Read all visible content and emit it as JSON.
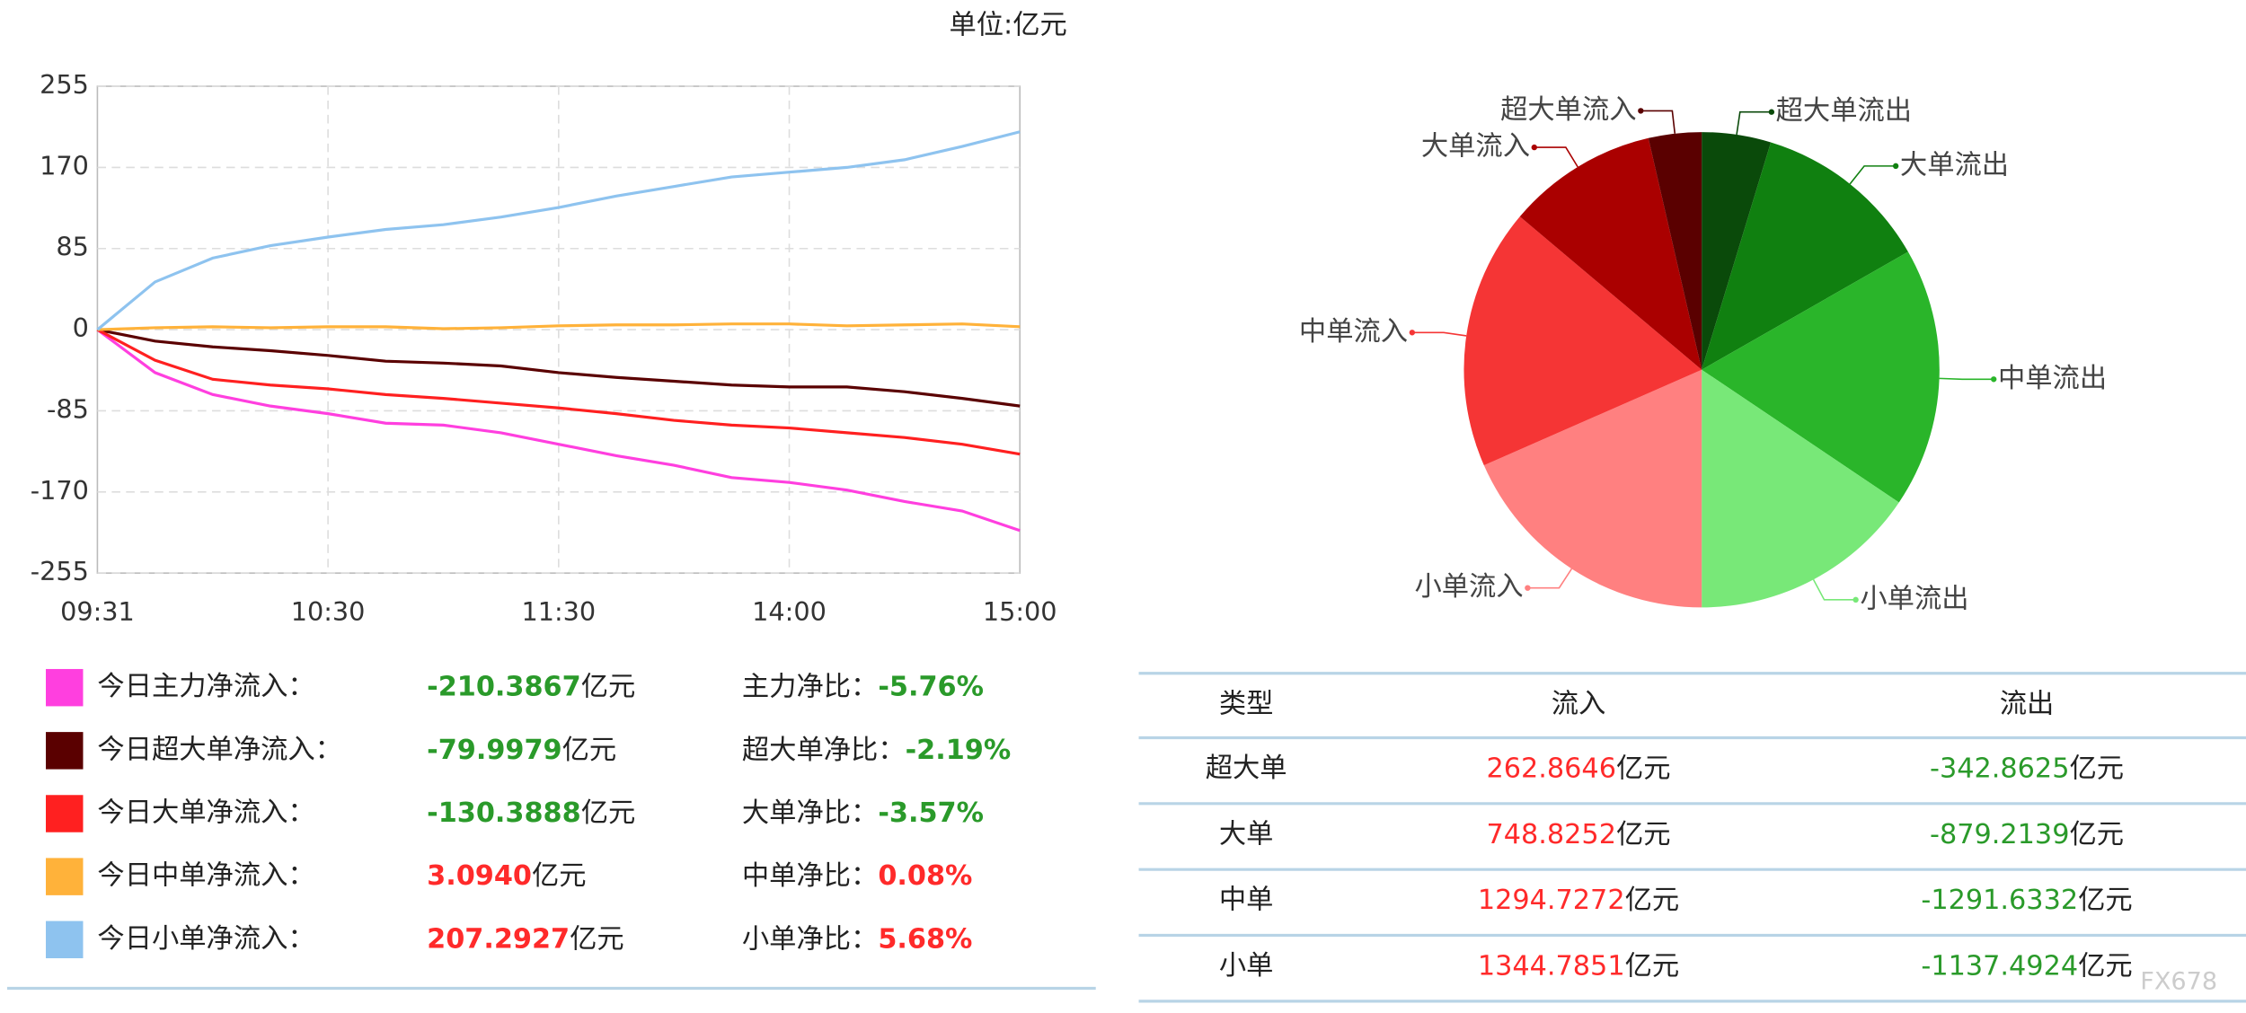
{
  "unit_label": "单位:亿元",
  "chart_data": [
    {
      "type": "line",
      "categories": [
        "09:31",
        null,
        null,
        null,
        "10:30",
        null,
        null,
        null,
        "11:30",
        null,
        null,
        null,
        "14:00",
        null,
        null,
        null,
        "15:00"
      ],
      "ylim": [
        -255,
        255
      ],
      "yticks": [
        -255,
        -170,
        -85,
        0,
        85,
        170,
        255
      ],
      "grid": true,
      "unit": "亿元",
      "series": [
        {
          "name": "今日主力净流入：",
          "color": "#ff3fdf",
          "values": [
            0,
            -45,
            -68,
            -80,
            -88,
            -98,
            -100,
            -108,
            -120,
            -132,
            -142,
            -155,
            -160,
            -168,
            -180,
            -190,
            -210.3867
          ],
          "net": -210.3867,
          "net_label": "-210.3867",
          "ratio_name": "主力净比：",
          "ratio": -5.76,
          "ratio_label": "-5.76%"
        },
        {
          "name": "今日超大单净流入：",
          "color": "#5a0000",
          "values": [
            0,
            -12,
            -18,
            -22,
            -27,
            -33,
            -35,
            -38,
            -45,
            -50,
            -54,
            -58,
            -60,
            -60,
            -65,
            -72,
            -79.9979
          ],
          "net": -79.9979,
          "net_label": "-79.9979",
          "ratio_name": "超大单净比：",
          "ratio": -2.19,
          "ratio_label": "-2.19%"
        },
        {
          "name": "今日大单净流入：",
          "color": "#ff2020",
          "values": [
            0,
            -32,
            -52,
            -58,
            -62,
            -68,
            -72,
            -77,
            -82,
            -88,
            -95,
            -100,
            -103,
            -108,
            -113,
            -120,
            -130.3888
          ],
          "net": -130.3888,
          "net_label": "-130.3888",
          "ratio_name": "大单净比：",
          "ratio": -3.57,
          "ratio_label": "-3.57%"
        },
        {
          "name": "今日中单净流入：",
          "color": "#ffb23a",
          "values": [
            0,
            2,
            3,
            2,
            3,
            3,
            1,
            2,
            4,
            5,
            5,
            6,
            6,
            4,
            5,
            6,
            3.094
          ],
          "net": 3.094,
          "net_label": "3.0940",
          "ratio_name": "中单净比：",
          "ratio": 0.08,
          "ratio_label": "0.08%"
        },
        {
          "name": "今日小单净流入：",
          "color": "#8ec3ef",
          "values": [
            0,
            50,
            75,
            88,
            97,
            105,
            110,
            118,
            128,
            140,
            150,
            160,
            165,
            170,
            178,
            192,
            207.2927
          ],
          "net": 207.2927,
          "net_label": "207.2927",
          "ratio_name": "小单净比：",
          "ratio": 5.68,
          "ratio_label": "5.68%"
        }
      ]
    },
    {
      "type": "pie",
      "categories": [
        "超大单流出",
        "大单流出",
        "中单流出",
        "小单流出",
        "小单流入",
        "中单流入",
        "大单流入",
        "超大单流入"
      ],
      "values": [
        342.8625,
        879.2139,
        1291.6332,
        1137.4924,
        1344.7851,
        1294.7272,
        748.8252,
        262.8646
      ],
      "colors": [
        "#0a4a0a",
        "#108010",
        "#2ab52a",
        "#78e878",
        "#ff8080",
        "#f53535",
        "#aa0000",
        "#5a0000"
      ]
    }
  ],
  "table": {
    "header": [
      "类型",
      "流入",
      "流出"
    ],
    "unit": "亿元",
    "rows": [
      [
        "超大单",
        262.8646,
        -342.8625
      ],
      [
        "大单",
        748.8252,
        -879.2139
      ],
      [
        "中单",
        1294.7272,
        -1291.6332
      ],
      [
        "小单",
        1344.7851,
        -1137.4924
      ]
    ]
  },
  "watermark": "FX678"
}
